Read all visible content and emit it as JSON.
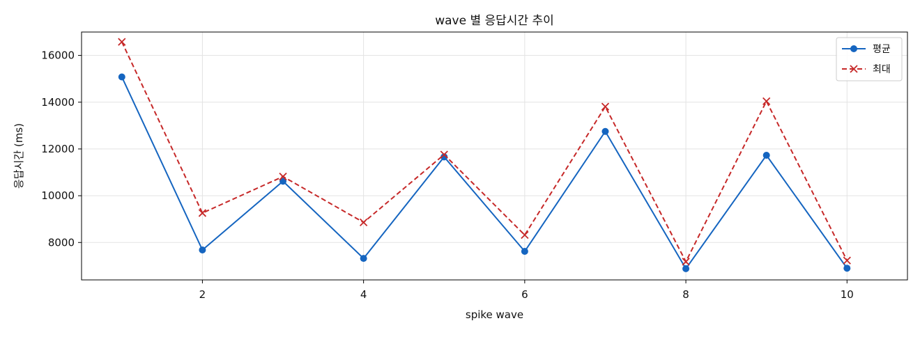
{
  "chart_data": {
    "type": "line",
    "title": "wave 별 응답시간 추이",
    "xlabel": "spike wave",
    "ylabel": "응답시간 (ms)",
    "x": [
      1,
      2,
      3,
      4,
      5,
      6,
      7,
      8,
      9,
      10
    ],
    "xlim": [
      0.5,
      10.75
    ],
    "ylim": [
      6400,
      17000
    ],
    "xticks": [
      2,
      4,
      6,
      8,
      10
    ],
    "yticks": [
      8000,
      10000,
      12000,
      14000,
      16000
    ],
    "grid": true,
    "legend_position": "top-right",
    "series": [
      {
        "name": "평균",
        "values": [
          15080,
          7680,
          10620,
          7320,
          11660,
          7620,
          12750,
          6880,
          11730,
          6900
        ],
        "color": "#1565c0",
        "marker": "circle",
        "linestyle": "solid"
      },
      {
        "name": "최대",
        "values": [
          16580,
          9260,
          10820,
          8860,
          11760,
          8320,
          13810,
          7180,
          14040,
          7230
        ],
        "color": "#c62828",
        "marker": "x",
        "linestyle": "dashed"
      }
    ]
  }
}
